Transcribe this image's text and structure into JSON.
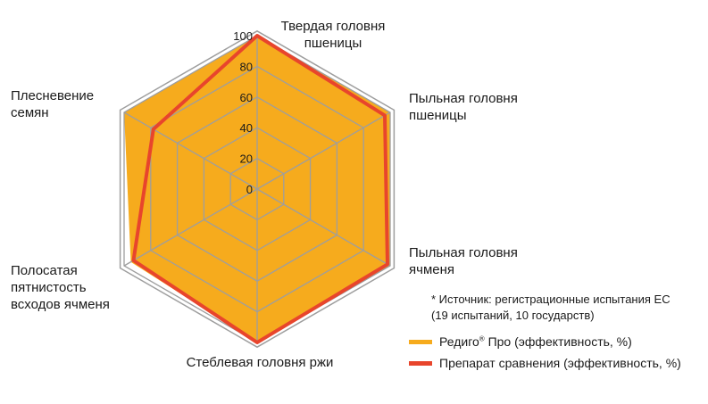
{
  "chart_data": {
    "type": "radar",
    "rmax": 100,
    "ticks": [
      "0",
      "20",
      "40",
      "60",
      "80",
      "100"
    ],
    "tick_values": [
      0,
      20,
      40,
      60,
      80,
      100
    ],
    "axes": [
      {
        "label_lines": [
          "Твердая головня",
          "пшеницы"
        ]
      },
      {
        "label_lines": [
          "Пыльная головня",
          "пшеницы"
        ]
      },
      {
        "label_lines": [
          "Пыльная головня",
          "ячменя"
        ]
      },
      {
        "label_lines": [
          "Стеблевая головня ржи"
        ]
      },
      {
        "label_lines": [
          "Полосатая",
          "пятнистость",
          "всходов ячменя"
        ]
      },
      {
        "label_lines": [
          "Плесневение",
          "семян"
        ]
      }
    ],
    "series": [
      {
        "name": "Редиго® Про (эффективность, %)",
        "color": "#f6ab1d",
        "style": "fill",
        "values": [
          100,
          100,
          100,
          100,
          95,
          100
        ]
      },
      {
        "name": "Препарат сравнения (эффективность, %)",
        "color": "#e8452c",
        "style": "line",
        "values": [
          100,
          96,
          98,
          100,
          93,
          78
        ]
      }
    ],
    "grid_color": "#9e9e9e"
  },
  "note": {
    "line1": "* Источник: регистрационные испытания ЕС",
    "line2": "(19 испытаний, 10 государств)"
  },
  "legend": {
    "item1_main": "Редиго",
    "item1_sup": "®",
    "item1_rest": " Про (эффективность, %)",
    "item2": "Препарат сравнения (эффективность, %)"
  }
}
